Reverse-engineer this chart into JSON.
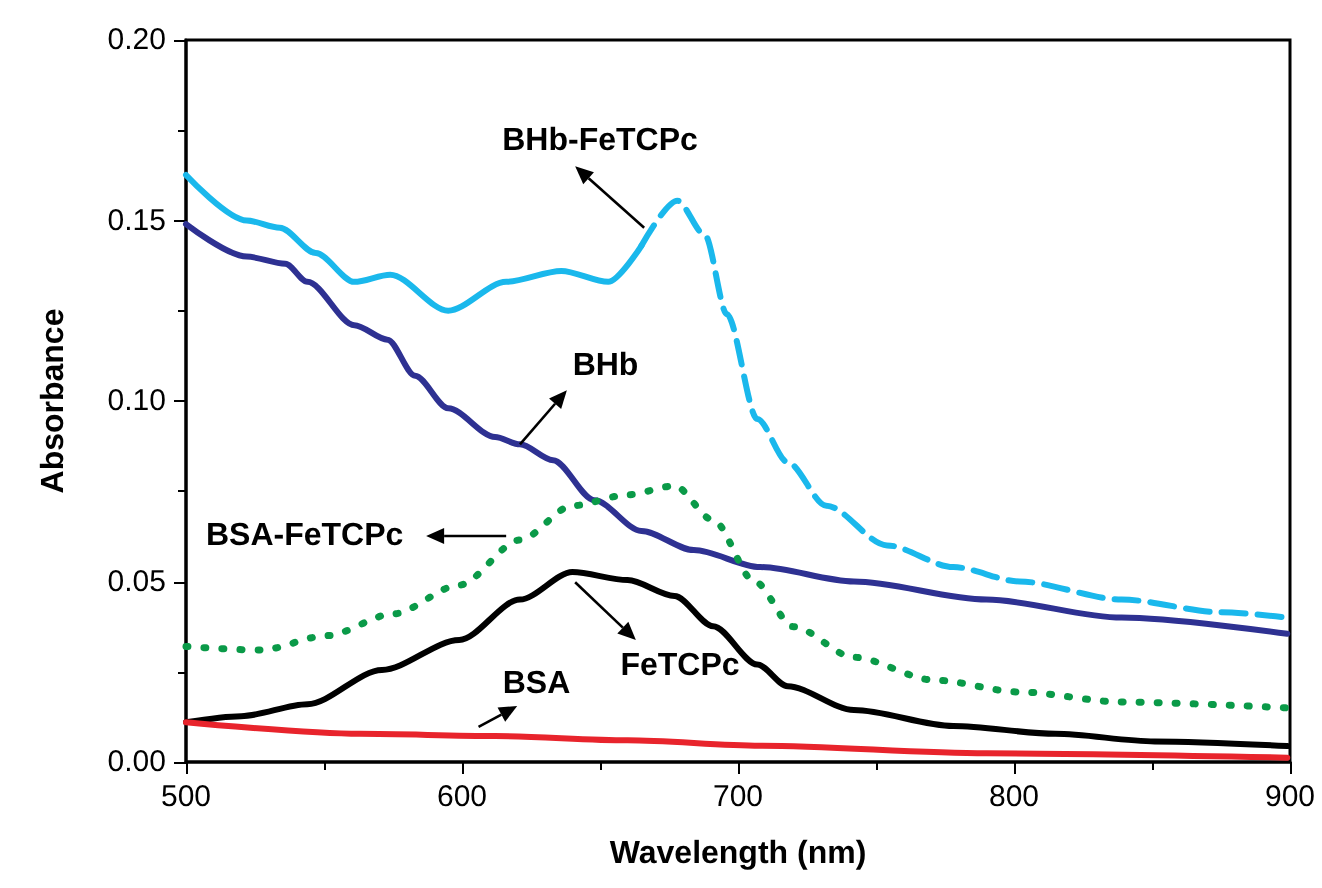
{
  "chart_data": {
    "type": "line",
    "xlabel": "Wavelength (nm)",
    "ylabel": "Absorbance",
    "xlim": [
      500,
      900
    ],
    "xticks": [
      500,
      600,
      700,
      800,
      900
    ],
    "ylim": [
      0,
      0.2
    ],
    "yticks": [
      {
        "value": 0,
        "label": "0.00"
      },
      {
        "value": 0.05,
        "label": "0.05"
      },
      {
        "value": 0.1,
        "label": "0.10"
      },
      {
        "value": 0.15,
        "label": "0.15"
      },
      {
        "value": 0.2,
        "label": "0.20"
      }
    ],
    "grid": false,
    "marker": "none",
    "annotations": [
      {
        "text": "BHb-FeTCPc",
        "x": 666,
        "y": 0.148
      },
      {
        "text": "BHb",
        "x": 621,
        "y": 0.088
      },
      "BSA-FeTCPc",
      {
        "text": "FeTCPc",
        "x": 641,
        "y": 0.052
      },
      {
        "text": "BSA",
        "x": 606,
        "y": 0.0075
      }
    ],
    "series": [
      {
        "color": "#1ab8ec",
        "line_style": "solid",
        "x": [
          500,
          522,
          534,
          547,
          561,
          574,
          595,
          616,
          636,
          653,
          665
        ],
        "values": [
          0.1626,
          0.15,
          0.148,
          0.141,
          0.133,
          0.135,
          0.125,
          0.133,
          0.136,
          0.133,
          0.143
        ]
      },
      {
        "color": "#1ab8ec",
        "line_style": "dashed",
        "x": [
          665,
          678,
          688,
          696,
          707,
          718,
          732,
          754,
          778,
          802,
          839,
          875,
          899
        ],
        "values": [
          0.143,
          0.1555,
          0.146,
          0.124,
          0.095,
          0.083,
          0.071,
          0.06,
          0.054,
          0.05,
          0.045,
          0.0415,
          0.04
        ]
      },
      {
        "color": "#2e3192",
        "line_style": "solid",
        "x": [
          500,
          522,
          536,
          544,
          561,
          573,
          583,
          595,
          612,
          621,
          633,
          648,
          665,
          684,
          708,
          742,
          790,
          839,
          899
        ],
        "values": [
          0.149,
          0.14,
          0.138,
          0.133,
          0.121,
          0.117,
          0.107,
          0.098,
          0.09,
          0.088,
          0.0836,
          0.0725,
          0.064,
          0.0587,
          0.054,
          0.05,
          0.045,
          0.04,
          0.0355
        ]
      },
      {
        "color": "#0a9a48",
        "line_style": "dotted",
        "x": [
          500,
          527,
          551,
          575,
          599,
          621,
          640,
          660,
          677,
          691,
          706,
          720,
          742,
          771,
          802,
          839,
          899
        ],
        "values": [
          0.032,
          0.031,
          0.035,
          0.041,
          0.049,
          0.0615,
          0.071,
          0.074,
          0.0765,
          0.067,
          0.05,
          0.0375,
          0.029,
          0.0227,
          0.0194,
          0.0166,
          0.015
        ]
      },
      {
        "color": "#000000",
        "line_style": "solid",
        "x": [
          500,
          520,
          544,
          571,
          599,
          621,
          640,
          660,
          677,
          691,
          707,
          718,
          742,
          778,
          815,
          851,
          899
        ],
        "values": [
          0.011,
          0.0127,
          0.016,
          0.0255,
          0.0338,
          0.045,
          0.0526,
          0.0504,
          0.046,
          0.0376,
          0.027,
          0.021,
          0.0144,
          0.01,
          0.0078,
          0.0057,
          0.0044
        ]
      },
      {
        "color": "#e8242c",
        "line_style": "solid",
        "x": [
          500,
          563,
          612,
          660,
          708,
          790,
          899
        ],
        "values": [
          0.011,
          0.0078,
          0.0072,
          0.006,
          0.0045,
          0.0024,
          0.0012
        ]
      }
    ]
  }
}
